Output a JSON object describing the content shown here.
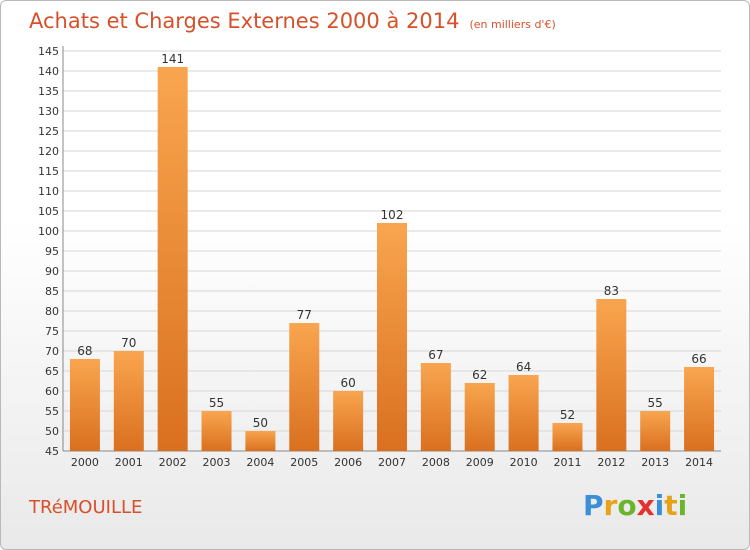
{
  "header": {
    "title": "Achats et Charges Externes 2000 à 2014",
    "subtitle": "(en milliers d'€)"
  },
  "footer": {
    "commune": "TRéMOUILLE",
    "logo_text": "Proxiti"
  },
  "colors": {
    "bar_light": "#f9a54f",
    "bar_dark": "#d9701f",
    "title": "#d8502a",
    "grid": "#d6d6d6"
  },
  "chart_data": {
    "type": "bar",
    "title": "Achats et Charges Externes 2000 à 2014",
    "subtitle": "(en milliers d'€)",
    "categories": [
      "2000",
      "2001",
      "2002",
      "2003",
      "2004",
      "2005",
      "2006",
      "2007",
      "2008",
      "2009",
      "2010",
      "2011",
      "2012",
      "2013",
      "2014"
    ],
    "values": [
      68,
      70,
      141,
      55,
      50,
      77,
      60,
      102,
      67,
      62,
      64,
      52,
      83,
      55,
      66
    ],
    "ylim": [
      45,
      145
    ],
    "ytick_step": 5,
    "grid": true,
    "data_labels": true,
    "xlabel": "",
    "ylabel": ""
  }
}
